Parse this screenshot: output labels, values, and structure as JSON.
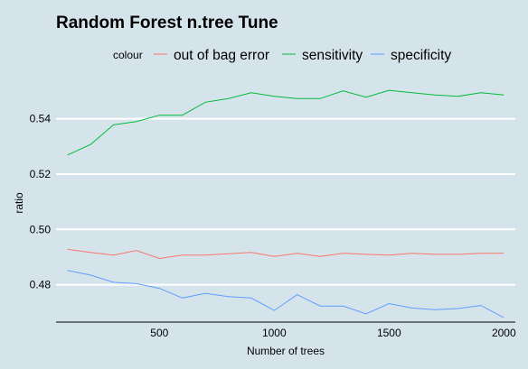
{
  "chart_data": {
    "type": "line",
    "title": "Random Forest n.tree Tune",
    "xlabel": "Number of trees",
    "ylabel": "ratio",
    "legend_title": "colour",
    "legend_position": "top",
    "xlim": [
      50,
      2050
    ],
    "ylim": [
      0.4665,
      0.5575
    ],
    "x_ticks": [
      500,
      1000,
      1500,
      2000
    ],
    "y_ticks": [
      0.48,
      0.5,
      0.52,
      0.54
    ],
    "y_tick_labels": [
      "0.48",
      "0.50",
      "0.52",
      "0.54"
    ],
    "x_tick_labels": [
      "500",
      "1000",
      "1500",
      "2000"
    ],
    "grid": "horizontal",
    "x": [
      100,
      200,
      300,
      400,
      500,
      600,
      700,
      800,
      900,
      1000,
      1100,
      1200,
      1300,
      1400,
      1500,
      1600,
      1700,
      1800,
      1900,
      2000
    ],
    "series": [
      {
        "name": "out of bag error",
        "color": "#f8766d",
        "values": [
          0.4928,
          0.4917,
          0.4907,
          0.4924,
          0.4895,
          0.4907,
          0.4907,
          0.4912,
          0.4917,
          0.4902,
          0.4914,
          0.4902,
          0.4914,
          0.491,
          0.4907,
          0.4914,
          0.491,
          0.491,
          0.4914,
          0.4914
        ]
      },
      {
        "name": "sensitivity",
        "color": "#00ba38",
        "values": [
          0.5269,
          0.5307,
          0.5378,
          0.539,
          0.5413,
          0.5413,
          0.546,
          0.5473,
          0.5494,
          0.5481,
          0.5473,
          0.5473,
          0.5501,
          0.5478,
          0.5503,
          0.5494,
          0.5486,
          0.5481,
          0.5494,
          0.5486
        ]
      },
      {
        "name": "specificity",
        "color": "#619cff",
        "values": [
          0.4852,
          0.4835,
          0.4809,
          0.4804,
          0.4787,
          0.4752,
          0.4769,
          0.4757,
          0.4752,
          0.4707,
          0.4764,
          0.4723,
          0.4723,
          0.4695,
          0.4732,
          0.4716,
          0.471,
          0.4714,
          0.4725,
          0.4681
        ]
      }
    ]
  }
}
